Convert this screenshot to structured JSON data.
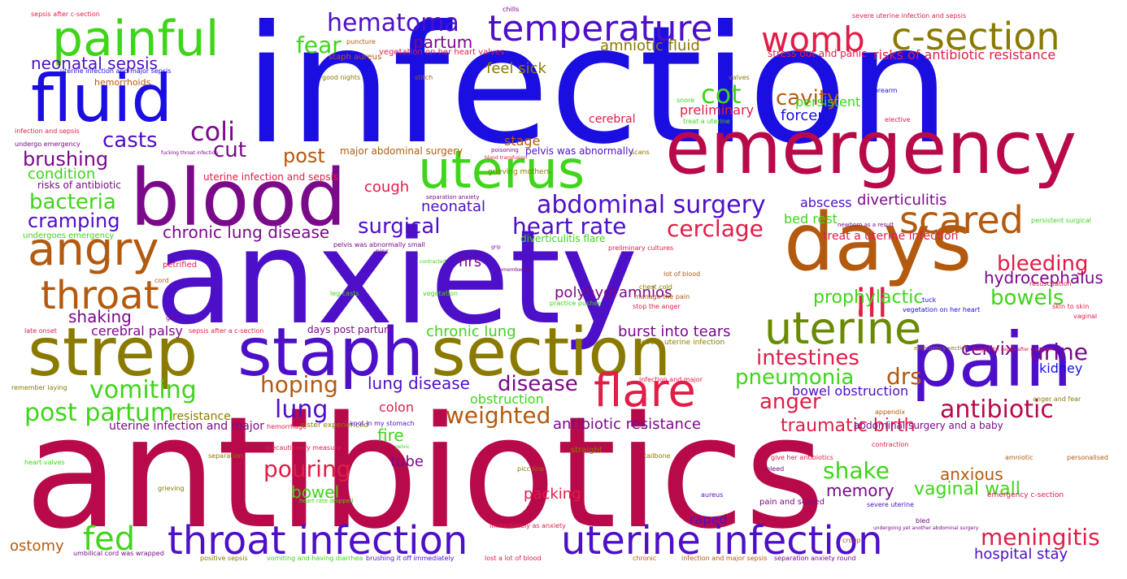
{
  "palette": {
    "red": "#e11d48",
    "crimson": "#b80a4a",
    "blue": "#1a0ee0",
    "indigo": "#4e0fc8",
    "purple": "#7a0a8a",
    "green": "#3fd51a",
    "olive": "#8a7a00",
    "brown": "#b45a0f",
    "orange": "#c8650f",
    "teal": "#2a8f6a"
  },
  "words": [
    "infection",
    "anxiety",
    "antibiotics",
    "emergency",
    "blood",
    "days",
    "pain",
    "strep",
    "staph",
    "section",
    "fluid",
    "painful",
    "uterus",
    "uterine",
    "throat infection",
    "uterine infection",
    "flare",
    "angry",
    "throat",
    "c-section",
    "temperature",
    "womb",
    "scared",
    "ill",
    "hematoma",
    "abdominal surgery",
    "heart rate",
    "surgical",
    "chronic lung disease",
    "cerclage",
    "bleeding",
    "hydrocephalus",
    "bowels",
    "prophylactic",
    "intestines",
    "pneumonia",
    "drs",
    "cervix",
    "urine",
    "kidney",
    "anger",
    "antibiotic",
    "traumatic birth",
    "fed",
    "post partum",
    "vomiting",
    "hoping",
    "lung",
    "lung disease",
    "disease",
    "weighted",
    "antibiotic resistance",
    "meningitis",
    "shake",
    "anxious",
    "vaginal wall",
    "memory",
    "pouring",
    "bowel",
    "tube",
    "packing",
    "fire",
    "obstruction",
    "colon",
    "bowel obstruction",
    "hospital stay",
    "ostomy",
    "raped",
    "coli",
    "casts",
    "brushing",
    "cut",
    "post",
    "condition",
    "bacteria",
    "cramping",
    "neonatal",
    "cough",
    "neonatal sepsis",
    "fear",
    "partum",
    "feel sick",
    "amniotic fluid",
    "cot",
    "cavity",
    "forceps",
    "stage",
    "preliminary",
    "cerebral",
    "abscess",
    "diverticulitis",
    "bed rest",
    "persistent",
    "shaking",
    "cerebral palsy",
    "chronic lung",
    "burst into tears",
    "polyhydramnios",
    "hrs",
    "days post partum",
    "risks of antibiotic resistance",
    "stress out and panic",
    "treat a uterine infection",
    "resistance",
    "uterine infection and major",
    "uterine infection and sepsis",
    "risks of antibiotic",
    "undergoes emergency",
    "major abdominal surgery",
    "pelvis was abnormally",
    "diverticulitis flare",
    "hemorrhoids",
    "staph aureus",
    "vegetation on her heart valves",
    "sepsis after c-section",
    "puncture",
    "chills",
    "severe uterine infection and sepsis",
    "uterine infection and major sepsis",
    "good nights",
    "stitch",
    "valves",
    "forearm",
    "infection and sepsis",
    "undergo emergency",
    "fucking throat infection",
    "blood transfusion",
    "poisoning",
    "grieving mothers",
    "separation anxiety",
    "treat a uterine",
    "elective",
    "scans",
    "snore",
    "pelvis was abnormally small",
    "newborn as a result",
    "persistent surgical",
    "grip",
    "preliminary cultures",
    "petrified",
    "picc",
    "contracted",
    "remembering",
    "vegetation",
    "cord",
    "leg casts",
    "lot of blood",
    "chest cold",
    "manage the pain",
    "stop the anger",
    "practice pushes",
    "tuck",
    "vegetation on her heart",
    "resuscitation",
    "gbs",
    "skin to skin",
    "vaginal",
    "late onset",
    "sepsis after a c-section",
    "severe uterine infection",
    "emergency section",
    "surgery for sepsis after c-section",
    "remember laying",
    "infection and major",
    "appendix",
    "anger and fear",
    "abdominal surgery and a baby",
    "hemorrhage",
    "sister experienced",
    "knot in my stomach",
    "precautionary measure",
    "pelvic",
    "straight",
    "tailbone",
    "give her antibiotics",
    "bleed",
    "contraction",
    "personalised",
    "amniotic",
    "emergency c-section",
    "heart valves",
    "separation",
    "grieving",
    "picc line",
    "heart rate dropped",
    "aureus",
    "pain and scared",
    "severe uterine",
    "immediately as anxiety",
    "undergoing yet another abdominal surgery",
    "bled",
    "croup",
    "umbilical cord was wrapped",
    "positive sepsis",
    "vomiting and having diarrhea",
    "brushing it off immediately",
    "lost a lot of blood",
    "chronic",
    "infection and major sepsis",
    "separation anxiety round"
  ]
}
